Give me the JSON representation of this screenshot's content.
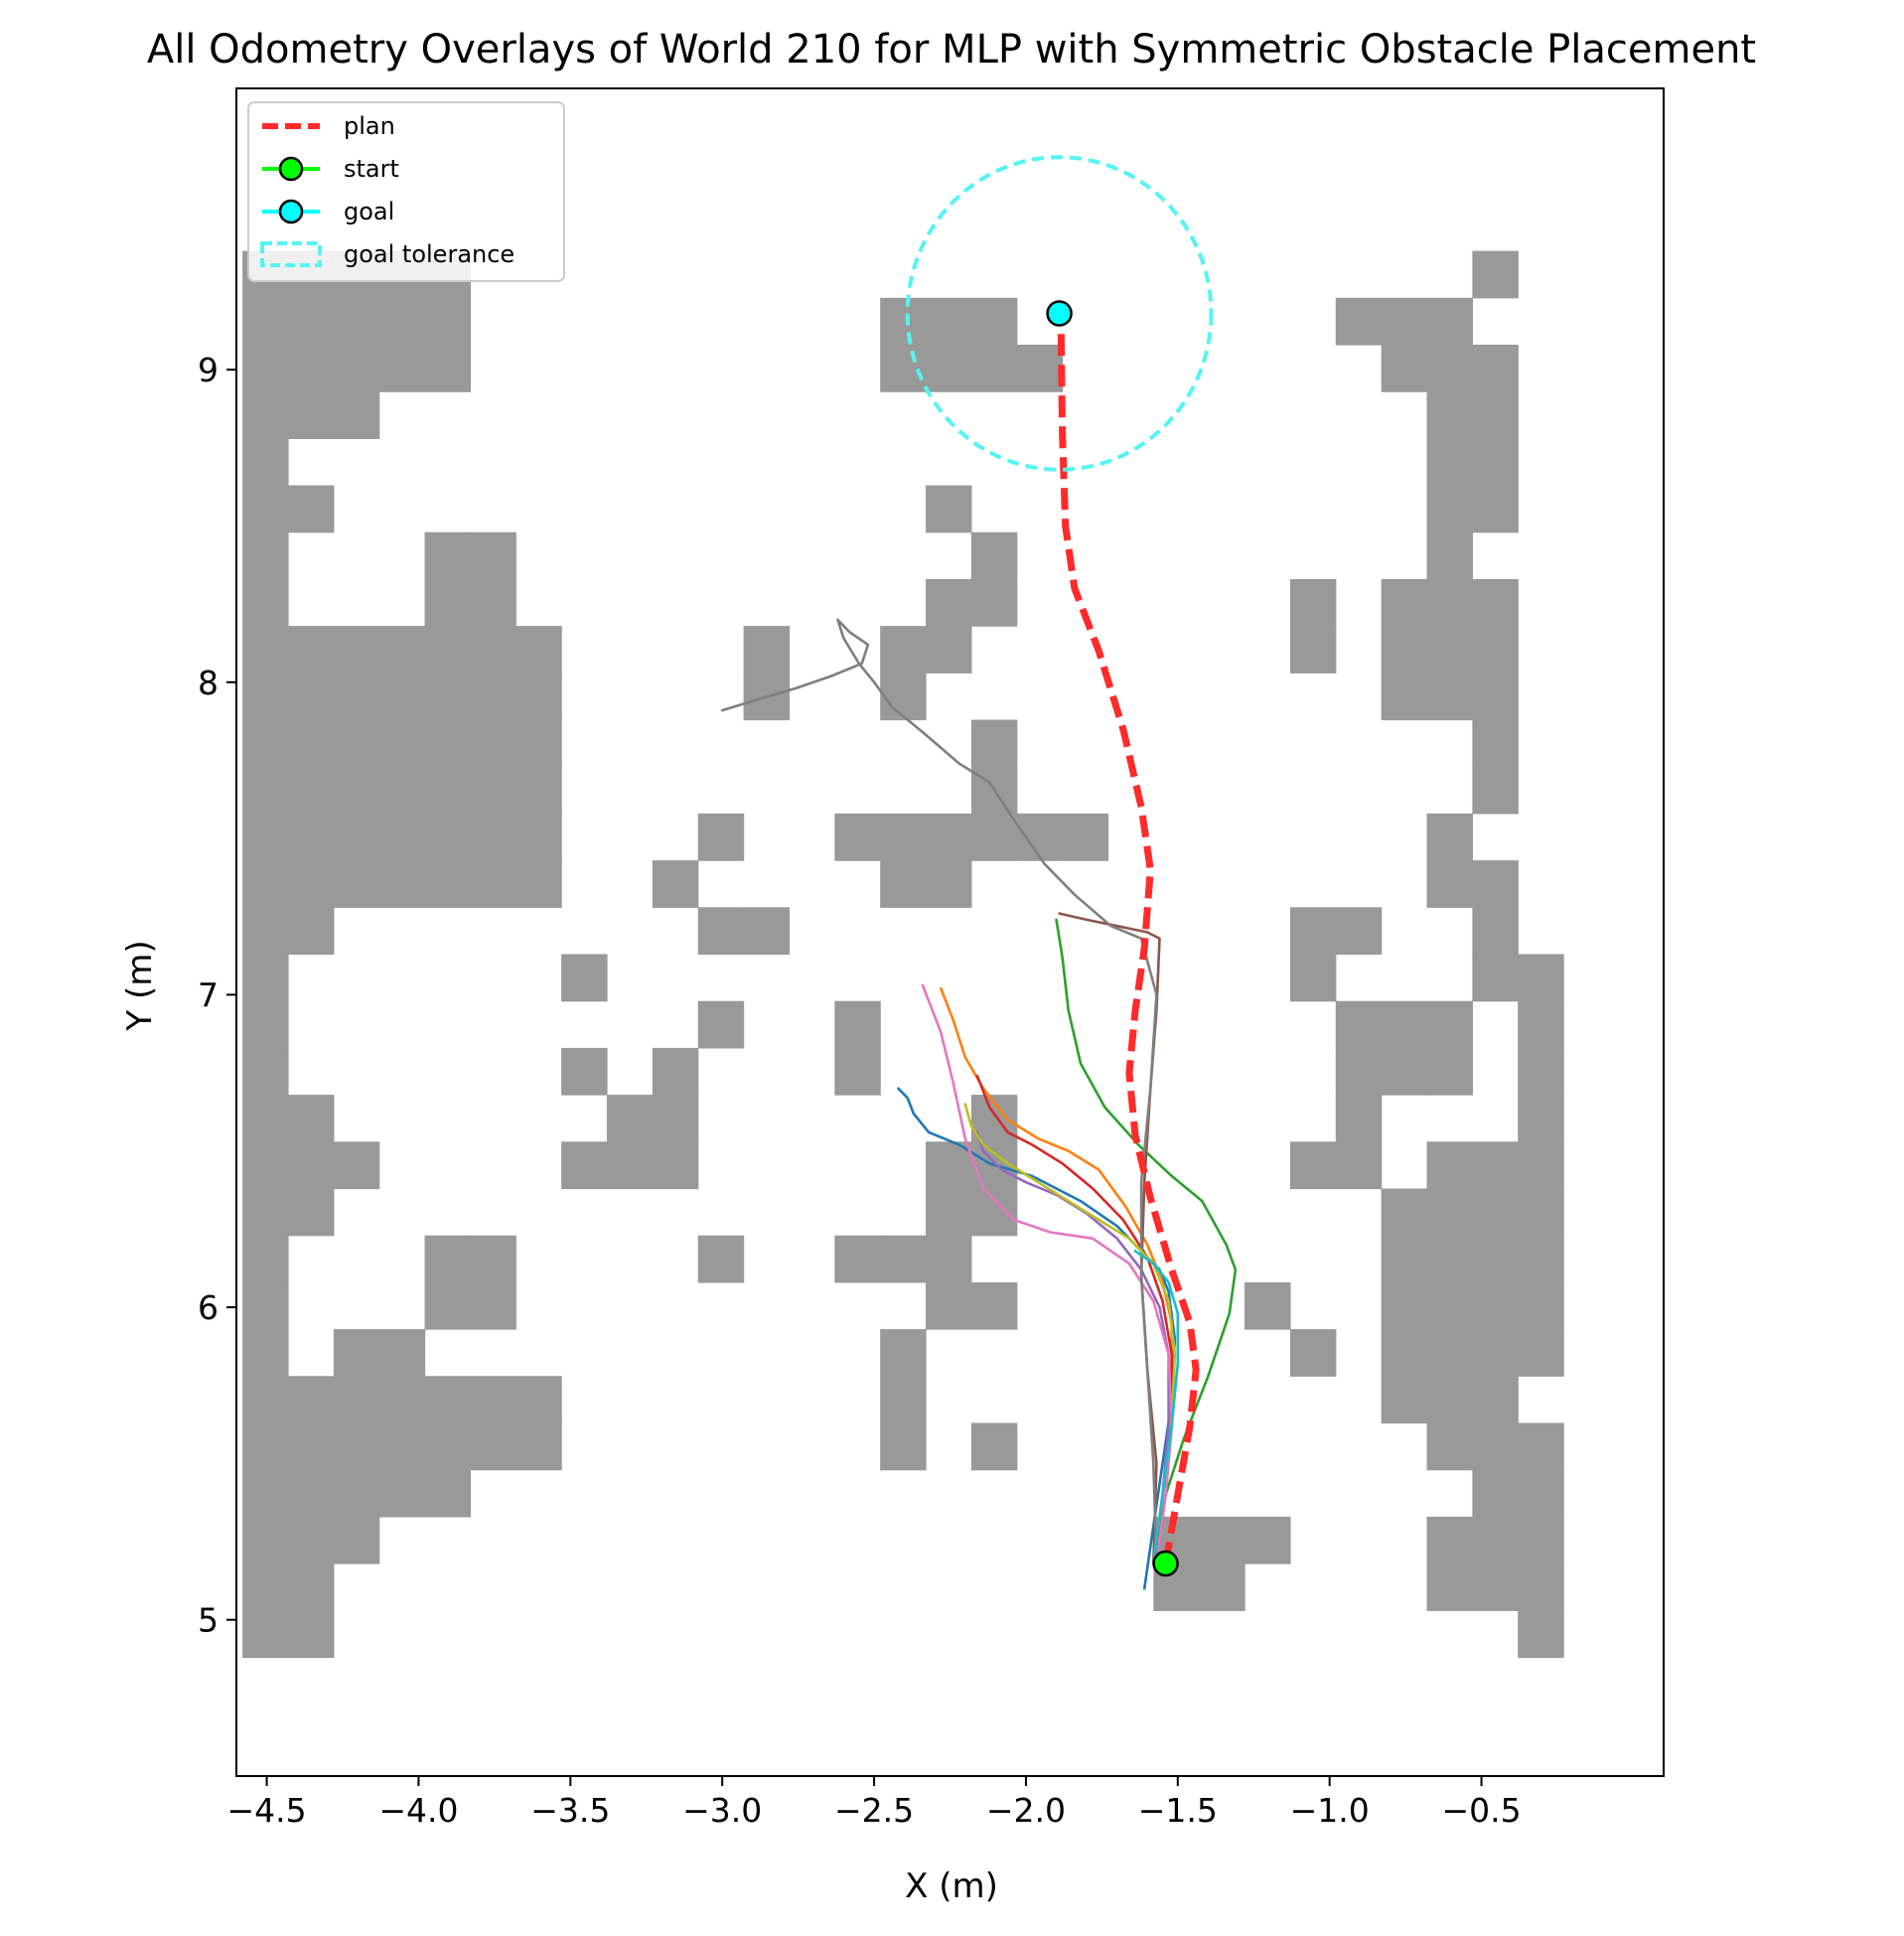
{
  "chart_data": {
    "type": "line",
    "title": "All Odometry Overlays of World 210 for MLP with Symmetric Obstacle Placement",
    "xlabel": "X (m)",
    "ylabel": "Y (m)",
    "xlim": [
      -4.6,
      0.1
    ],
    "ylim": [
      4.5,
      9.9
    ],
    "xticks": [
      -4.5,
      -4.0,
      -3.5,
      -3.0,
      -2.5,
      -2.0,
      -1.5,
      -1.0,
      -0.5
    ],
    "xtick_labels": [
      "−4.5",
      "−4.0",
      "−3.5",
      "−3.0",
      "−2.5",
      "−2.0",
      "−1.5",
      "−1.0",
      "−0.5"
    ],
    "yticks": [
      5,
      6,
      7,
      8,
      9
    ],
    "ytick_labels": [
      "5",
      "6",
      "7",
      "8",
      "9"
    ],
    "grid": false,
    "legend_position": "upper-left",
    "legend": [
      {
        "label": "plan",
        "kind": "dashed-line",
        "color": "#ff2a2a"
      },
      {
        "label": "start",
        "kind": "line-marker",
        "color": "#00ff00"
      },
      {
        "label": "goal",
        "kind": "line-marker",
        "color": "#00ffff"
      },
      {
        "label": "goal tolerance",
        "kind": "dashed-patch",
        "color": "#55f4f4"
      }
    ],
    "obstacle_cell_size": 0.15,
    "obstacle_color": "#999999",
    "obstacle_grid_origin": [
      -4.58,
      4.88
    ],
    "obstacle_rows": [
      "##..........................#",
      "##..................##....###",
      "###.................###...###",
      "#####......................##",
      "#######.......#.#.........###",
      "#######.......#..........###",
      "#.##..........#........#.####",
      "#...##.........##.....#..####",
      "#...##....#..###.........####",
      "##.............##........####",
      "###....###.....##......##.###",
      "##......##......#.......#...#",
      "#......#.#...#..........###.#",
      "#.........#..#..........###.#",
      "#......#...............#...##",
      "##........##...........##..#",
      "#######..#....##..........##",
      "#######...#..######.......#",
      "#######.........#..........#",
      "#######.........#..........#",
      "#######....#..#..........###",
      "#######....#..##.......#.###",
      "#...##.........##......#.###",
      "#...##..........#.........#",
      "##.............#..........##",
      "#.........................##",
      "###.......................##",
      "#####.........####.......###",
      "#####.........###.......###",
      "#####......................#"
    ],
    "plan": {
      "name": "plan",
      "color": "#ff2a2a",
      "x": [
        -1.54,
        -1.5,
        -1.46,
        -1.44,
        -1.46,
        -1.52,
        -1.59,
        -1.64,
        -1.66,
        -1.64,
        -1.61,
        -1.59,
        -1.62,
        -1.68,
        -1.76,
        -1.84,
        -1.87,
        -1.88,
        -1.885
      ],
      "y": [
        5.18,
        5.4,
        5.62,
        5.8,
        5.95,
        6.12,
        6.35,
        6.55,
        6.75,
        6.95,
        7.15,
        7.4,
        7.6,
        7.85,
        8.1,
        8.3,
        8.5,
        8.8,
        9.17
      ]
    },
    "start": {
      "x": -1.54,
      "y": 5.18,
      "color": "#00ff00"
    },
    "goal": {
      "x": -1.89,
      "y": 9.18,
      "color": "#00ffff"
    },
    "goal_tolerance_radius": 0.5,
    "series": [
      {
        "color": "#1f77b4",
        "x": [
          -1.61,
          -1.58,
          -1.55,
          -1.52,
          -1.51,
          -1.53,
          -1.56,
          -1.62,
          -1.7,
          -1.82,
          -1.98,
          -2.12,
          -2.22,
          -2.32,
          -2.37,
          -2.39,
          -2.42
        ],
        "y": [
          5.1,
          5.3,
          5.5,
          5.7,
          5.9,
          6.05,
          6.12,
          6.18,
          6.26,
          6.34,
          6.42,
          6.46,
          6.52,
          6.56,
          6.62,
          6.67,
          6.7
        ]
      },
      {
        "color": "#ff7f0e",
        "x": [
          -1.58,
          -1.55,
          -1.53,
          -1.52,
          -1.52,
          -1.55,
          -1.6,
          -1.67,
          -1.76,
          -1.86,
          -1.96,
          -2.06,
          -2.14,
          -2.2,
          -2.24,
          -2.28
        ],
        "y": [
          5.18,
          5.4,
          5.6,
          5.8,
          5.95,
          6.08,
          6.2,
          6.32,
          6.44,
          6.5,
          6.54,
          6.6,
          6.7,
          6.8,
          6.92,
          7.02
        ]
      },
      {
        "color": "#2ca02c",
        "x": [
          -1.58,
          -1.54,
          -1.48,
          -1.4,
          -1.33,
          -1.31,
          -1.34,
          -1.42,
          -1.52,
          -1.63,
          -1.74,
          -1.82,
          -1.86,
          -1.88,
          -1.9
        ],
        "y": [
          5.18,
          5.4,
          5.58,
          5.78,
          5.98,
          6.12,
          6.2,
          6.34,
          6.42,
          6.52,
          6.64,
          6.78,
          6.95,
          7.12,
          7.24
        ]
      },
      {
        "color": "#d62728",
        "x": [
          -1.57,
          -1.54,
          -1.52,
          -1.52,
          -1.55,
          -1.6,
          -1.68,
          -1.78,
          -1.88,
          -1.98,
          -2.06,
          -2.12,
          -2.16
        ],
        "y": [
          5.18,
          5.4,
          5.62,
          5.85,
          6.02,
          6.16,
          6.28,
          6.38,
          6.46,
          6.52,
          6.56,
          6.64,
          6.74
        ]
      },
      {
        "color": "#9467bd",
        "x": [
          -1.58,
          -1.55,
          -1.53,
          -1.53,
          -1.56,
          -1.62,
          -1.7,
          -1.8,
          -1.9,
          -2.0,
          -2.08,
          -2.14,
          -2.16
        ],
        "y": [
          5.18,
          5.4,
          5.62,
          5.85,
          6.0,
          6.12,
          6.22,
          6.3,
          6.36,
          6.4,
          6.44,
          6.5,
          6.56
        ]
      },
      {
        "color": "#8c564b",
        "x": [
          -1.58,
          -1.57,
          -1.6,
          -1.62,
          -1.61,
          -1.59,
          -1.57,
          -1.56,
          -1.6,
          -1.7,
          -1.8,
          -1.89
        ],
        "y": [
          5.18,
          5.5,
          5.8,
          6.1,
          6.4,
          6.7,
          6.95,
          7.18,
          7.2,
          7.22,
          7.24,
          7.26
        ]
      },
      {
        "color": "#e377c2",
        "x": [
          -1.57,
          -1.54,
          -1.52,
          -1.53,
          -1.58,
          -1.66,
          -1.78,
          -1.92,
          -2.04,
          -2.14,
          -2.2,
          -2.24,
          -2.28,
          -2.32,
          -2.34
        ],
        "y": [
          5.18,
          5.4,
          5.62,
          5.85,
          6.02,
          6.14,
          6.22,
          6.24,
          6.28,
          6.38,
          6.54,
          6.72,
          6.88,
          6.98,
          7.03
        ]
      },
      {
        "color": "#7f7f7f",
        "x": [
          -1.57,
          -1.58,
          -1.6,
          -1.62,
          -1.62,
          -1.59,
          -1.57,
          -1.62,
          -1.72,
          -1.84,
          -1.94,
          -2.04,
          -2.12,
          -2.22,
          -2.34,
          -2.44,
          -2.5,
          -2.55,
          -2.6,
          -2.62,
          -2.58,
          -2.52,
          -2.54,
          -2.64,
          -2.76,
          -2.9,
          -3.0
        ],
        "y": [
          5.18,
          5.5,
          5.8,
          6.1,
          6.4,
          6.7,
          7.0,
          7.18,
          7.22,
          7.32,
          7.42,
          7.56,
          7.68,
          7.74,
          7.84,
          7.92,
          8.0,
          8.06,
          8.14,
          8.2,
          8.16,
          8.12,
          8.06,
          8.02,
          7.98,
          7.94,
          7.91
        ]
      },
      {
        "color": "#bcbd22",
        "x": [
          -1.58,
          -1.55,
          -1.52,
          -1.51,
          -1.53,
          -1.58,
          -1.66,
          -1.76,
          -1.86,
          -1.96,
          -2.06,
          -2.14,
          -2.18,
          -2.2
        ],
        "y": [
          5.18,
          5.4,
          5.62,
          5.85,
          6.02,
          6.14,
          6.22,
          6.28,
          6.34,
          6.4,
          6.46,
          6.52,
          6.58,
          6.65
        ]
      },
      {
        "color": "#17becf",
        "x": [
          -1.58,
          -1.55,
          -1.52,
          -1.5,
          -1.5,
          -1.53,
          -1.58,
          -1.64
        ],
        "y": [
          5.18,
          5.4,
          5.62,
          5.82,
          5.98,
          6.08,
          6.14,
          6.18
        ]
      }
    ]
  }
}
